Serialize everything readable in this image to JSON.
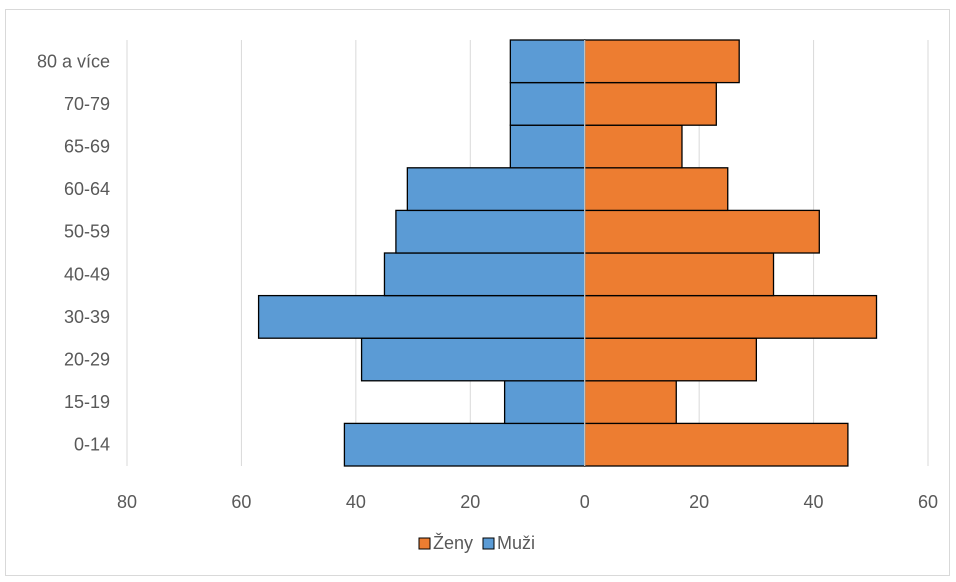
{
  "chart_data": {
    "type": "bar",
    "orientation": "horizontal",
    "subtype": "population-pyramid",
    "categories": [
      "0-14",
      "15-19",
      "20-29",
      "30-39",
      "40-49",
      "50-59",
      "60-64",
      "65-69",
      "70-79",
      "80 a více"
    ],
    "series": [
      {
        "name": "Ženy",
        "color": "#ed7d31",
        "values": [
          46,
          16,
          30,
          51,
          33,
          41,
          25,
          17,
          23,
          27
        ]
      },
      {
        "name": "Muži",
        "color": "#5b9bd5",
        "values": [
          42,
          14,
          39,
          57,
          35,
          33,
          31,
          13,
          13,
          13
        ]
      }
    ],
    "x_ticks": [
      "80",
      "60",
      "40",
      "20",
      "0",
      "20",
      "40",
      "60"
    ],
    "xlim": [
      -80,
      60
    ],
    "grid": true,
    "legend_position": "bottom",
    "title": "",
    "xlabel": "",
    "ylabel": ""
  }
}
